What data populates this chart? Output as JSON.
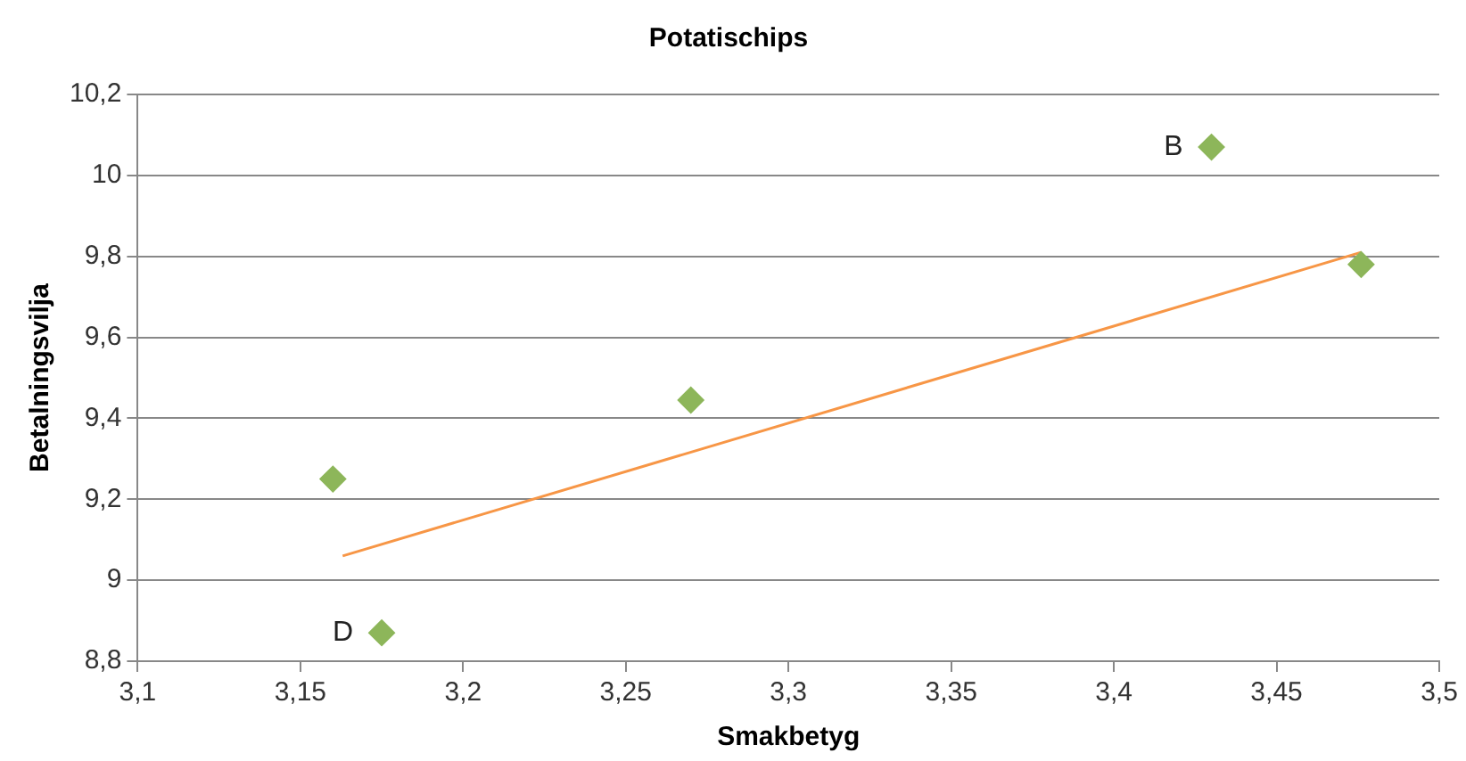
{
  "chart_data": {
    "type": "scatter",
    "title": "Potatischips",
    "xlabel": "Smakbetyg",
    "ylabel": "Betalningsvilja",
    "series": [
      {
        "color": "#8db65a",
        "marker": "diamond",
        "x": [
          3.16,
          3.175,
          3.27,
          3.43,
          3.476
        ],
        "values": [
          9.25,
          8.87,
          9.445,
          10.07,
          9.78
        ]
      },
      {
        "type": "line",
        "marker": "none",
        "color": "#f79646",
        "x": [
          3.163,
          3.476
        ],
        "values": [
          9.06,
          9.81
        ]
      }
    ],
    "annotations": [
      {
        "text": "B",
        "x": 3.43,
        "y": 10.07
      },
      {
        "text": "D",
        "x": 3.175,
        "y": 8.87
      }
    ],
    "grid": "y",
    "legend": false,
    "xlim": [
      3.1,
      3.5
    ],
    "xticks": [
      {
        "value": 3.1,
        "label": "3,1"
      },
      {
        "value": 3.15,
        "label": "3,15"
      },
      {
        "value": 3.2,
        "label": "3,2"
      },
      {
        "value": 3.25,
        "label": "3,25"
      },
      {
        "value": 3.3,
        "label": "3,3"
      },
      {
        "value": 3.35,
        "label": "3,35"
      },
      {
        "value": 3.4,
        "label": "3,4"
      },
      {
        "value": 3.45,
        "label": "3,45"
      },
      {
        "value": 3.5,
        "label": "3,5"
      }
    ],
    "ylim": [
      8.8,
      10.2
    ],
    "yticks": [
      {
        "value": 8.8,
        "label": "8,8"
      },
      9,
      {
        "value": 9.2,
        "label": "9,2"
      },
      {
        "value": 9.4,
        "label": "9,4"
      },
      {
        "value": 9.6,
        "label": "9,6"
      },
      {
        "value": 9.8,
        "label": "9,8"
      },
      10,
      {
        "value": 10.2,
        "label": "10,2"
      }
    ]
  }
}
